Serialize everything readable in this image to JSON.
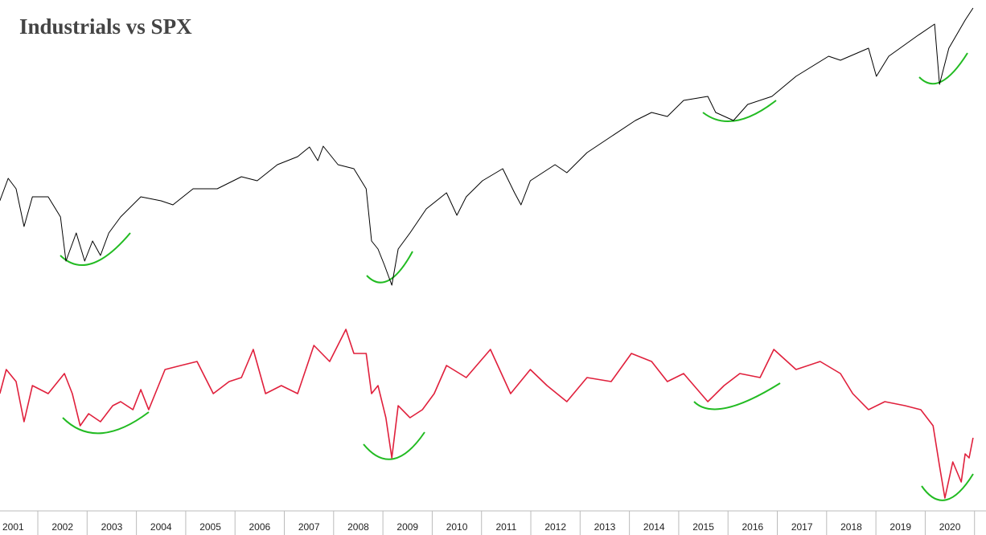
{
  "chart_data": [
    {
      "type": "line",
      "title": "Industrials vs SPX",
      "xlim": [
        2001.233,
        2021.233
      ],
      "ylim": [
        0,
        370
      ],
      "x": [
        2001.23,
        2001.4,
        2001.56,
        2001.72,
        2001.89,
        2002.21,
        2002.46,
        2002.57,
        2002.78,
        2002.95,
        2003.11,
        2003.27,
        2003.44,
        2003.68,
        2004.09,
        2004.5,
        2004.74,
        2005.15,
        2005.64,
        2006.13,
        2006.45,
        2006.86,
        2007.27,
        2007.51,
        2007.68,
        2007.79,
        2008.09,
        2008.41,
        2008.66,
        2008.77,
        2008.9,
        2009.03,
        2009.18,
        2009.31,
        2009.55,
        2009.88,
        2010.29,
        2010.5,
        2010.69,
        2011.02,
        2011.43,
        2011.67,
        2011.8,
        2011.99,
        2012.49,
        2012.73,
        2013.14,
        2013.63,
        2014.12,
        2014.45,
        2014.77,
        2015.1,
        2015.59,
        2015.75,
        2016.11,
        2016.4,
        2016.89,
        2017.38,
        2018.04,
        2018.28,
        2018.85,
        2019.01,
        2019.26,
        2019.83,
        2020.19,
        2020.29,
        2020.48,
        2020.81,
        2020.97
      ],
      "series": [
        {
          "color": "#000000",
          "values": [
            120,
            148,
            135,
            88,
            125,
            125,
            100,
            45,
            80,
            45,
            70,
            52,
            80,
            100,
            125,
            120,
            115,
            135,
            135,
            150,
            145,
            165,
            175,
            187,
            170,
            188,
            165,
            160,
            135,
            70,
            60,
            40,
            15,
            60,
            80,
            110,
            130,
            102,
            125,
            145,
            160,
            130,
            115,
            145,
            165,
            155,
            180,
            200,
            220,
            230,
            225,
            245,
            250,
            230,
            220,
            240,
            250,
            275,
            300,
            295,
            310,
            275,
            300,
            325,
            340,
            265,
            310,
            345,
            360
          ]
        }
      ]
    },
    {
      "type": "line",
      "xlim": [
        2001.233,
        2021.233
      ],
      "ylim": [
        0,
        260
      ],
      "x": [
        2001.23,
        2001.36,
        2001.56,
        2001.72,
        2001.89,
        2002.21,
        2002.54,
        2002.7,
        2002.86,
        2003.03,
        2003.27,
        2003.52,
        2003.68,
        2003.93,
        2004.09,
        2004.25,
        2004.58,
        2004.9,
        2005.23,
        2005.56,
        2005.88,
        2006.13,
        2006.37,
        2006.62,
        2006.94,
        2007.27,
        2007.6,
        2007.92,
        2008.25,
        2008.41,
        2008.66,
        2008.77,
        2008.9,
        2009.06,
        2009.18,
        2009.31,
        2009.55,
        2009.8,
        2010.04,
        2010.29,
        2010.69,
        2011.18,
        2011.59,
        2011.99,
        2012.33,
        2012.73,
        2013.14,
        2013.63,
        2014.04,
        2014.45,
        2014.77,
        2015.1,
        2015.59,
        2015.92,
        2016.24,
        2016.65,
        2016.93,
        2017.38,
        2017.87,
        2018.28,
        2018.53,
        2018.85,
        2019.18,
        2019.59,
        2019.91,
        2020.16,
        2020.29,
        2020.4,
        2020.56,
        2020.73,
        2020.81,
        2020.89,
        2020.97
      ],
      "series": [
        {
          "color": "#e0203c",
          "values": [
            150,
            180,
            165,
            115,
            160,
            150,
            175,
            150,
            110,
            125,
            115,
            135,
            140,
            130,
            155,
            130,
            180,
            185,
            190,
            150,
            165,
            170,
            205,
            150,
            160,
            150,
            210,
            190,
            230,
            200,
            200,
            150,
            160,
            120,
            70,
            135,
            120,
            130,
            150,
            185,
            170,
            205,
            150,
            180,
            160,
            140,
            170,
            165,
            200,
            190,
            165,
            175,
            140,
            160,
            175,
            170,
            205,
            180,
            190,
            175,
            150,
            130,
            140,
            135,
            130,
            110,
            60,
            20,
            65,
            40,
            75,
            70,
            95
          ]
        }
      ],
      "xticks": [
        {
          "value": 2001.5,
          "label": "2001"
        },
        {
          "value": 2002.5,
          "label": "2002"
        },
        {
          "value": 2003.5,
          "label": "2003"
        },
        {
          "value": 2004.5,
          "label": "2004"
        },
        {
          "value": 2005.5,
          "label": "2005"
        },
        {
          "value": 2006.5,
          "label": "2006"
        },
        {
          "value": 2007.5,
          "label": "2007"
        },
        {
          "value": 2008.5,
          "label": "2008"
        },
        {
          "value": 2009.5,
          "label": "2009"
        },
        {
          "value": 2010.5,
          "label": "2010"
        },
        {
          "value": 2011.5,
          "label": "2011"
        },
        {
          "value": 2012.5,
          "label": "2012"
        },
        {
          "value": 2013.5,
          "label": "2013"
        },
        {
          "value": 2014.5,
          "label": "2014"
        },
        {
          "value": 2015.5,
          "label": "2015"
        },
        {
          "value": 2016.5,
          "label": "2016"
        },
        {
          "value": 2017.5,
          "label": "2017"
        },
        {
          "value": 2018.5,
          "label": "2018"
        },
        {
          "value": 2019.5,
          "label": "2019"
        },
        {
          "value": 2020.5,
          "label": "2020"
        }
      ]
    }
  ]
}
